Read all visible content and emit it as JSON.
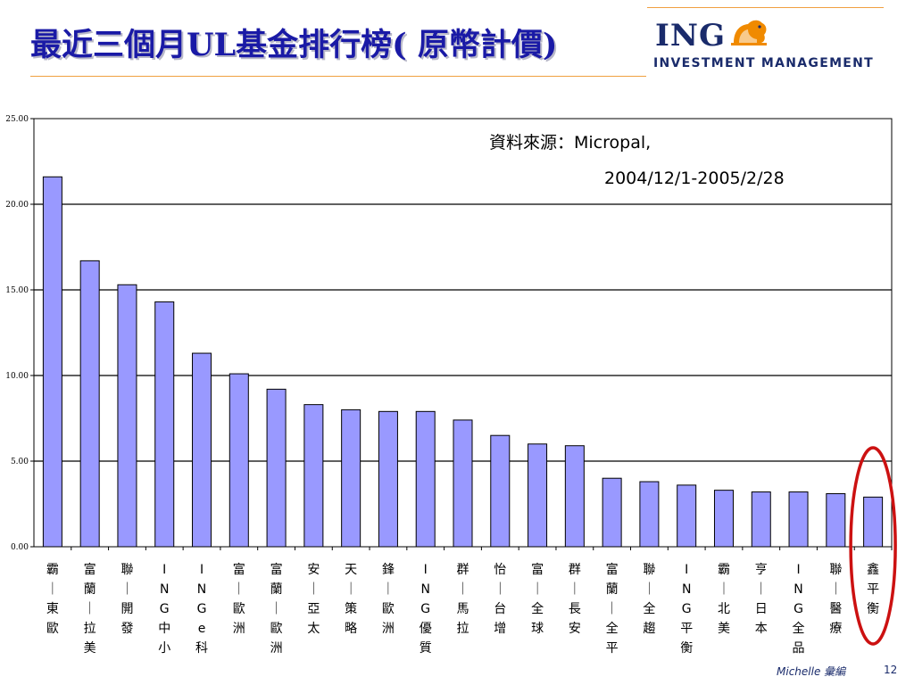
{
  "slide": {
    "title": "最近三個月UL基金排行榜( 原幣計價)",
    "logo_word": "ING",
    "logo_sub": "INVESTMENT MANAGEMENT",
    "source_line1": "資料來源：Micropal,",
    "source_line2": "2004/12/1-2005/2/28",
    "footer_author": "Michelle 彙編",
    "page_number": "12"
  },
  "colors": {
    "title": "#1a1aa6",
    "bar_fill": "#9999ff",
    "bar_stroke": "#000000",
    "highlight_ring": "#cc1111",
    "accent_rule": "#f0a040",
    "logo_navy": "#1a2b6b",
    "logo_lion": "#f08a00"
  },
  "chart_data": {
    "type": "bar",
    "ylim": [
      0,
      25
    ],
    "yticks": [
      "0.00",
      "5.00",
      "10.00",
      "15.00",
      "20.00",
      "25.00"
    ],
    "grid": true,
    "highlighted_category_index": 22,
    "categories": [
      "霸｜東歐",
      "富蘭｜拉美",
      "聯｜開發",
      "ING中小",
      "INGe科",
      "富｜歐洲",
      "富蘭｜歐洲",
      "安｜亞太",
      "天｜策略",
      "鋒｜歐洲",
      "ING優質",
      "群｜馬拉",
      "怡｜台增",
      "富｜全球",
      "群｜長安",
      "富蘭｜全平",
      "聯｜全趨",
      "ING平衡",
      "霸｜北美",
      "亨｜日本",
      "ING全品",
      "聯｜醫療",
      "鑫平衡"
    ],
    "values": [
      21.6,
      16.7,
      15.3,
      14.3,
      11.3,
      10.1,
      9.2,
      8.3,
      8.0,
      7.9,
      7.9,
      7.4,
      6.5,
      6.0,
      5.9,
      4.0,
      3.8,
      3.6,
      3.3,
      3.2,
      3.2,
      3.1,
      2.9
    ]
  }
}
